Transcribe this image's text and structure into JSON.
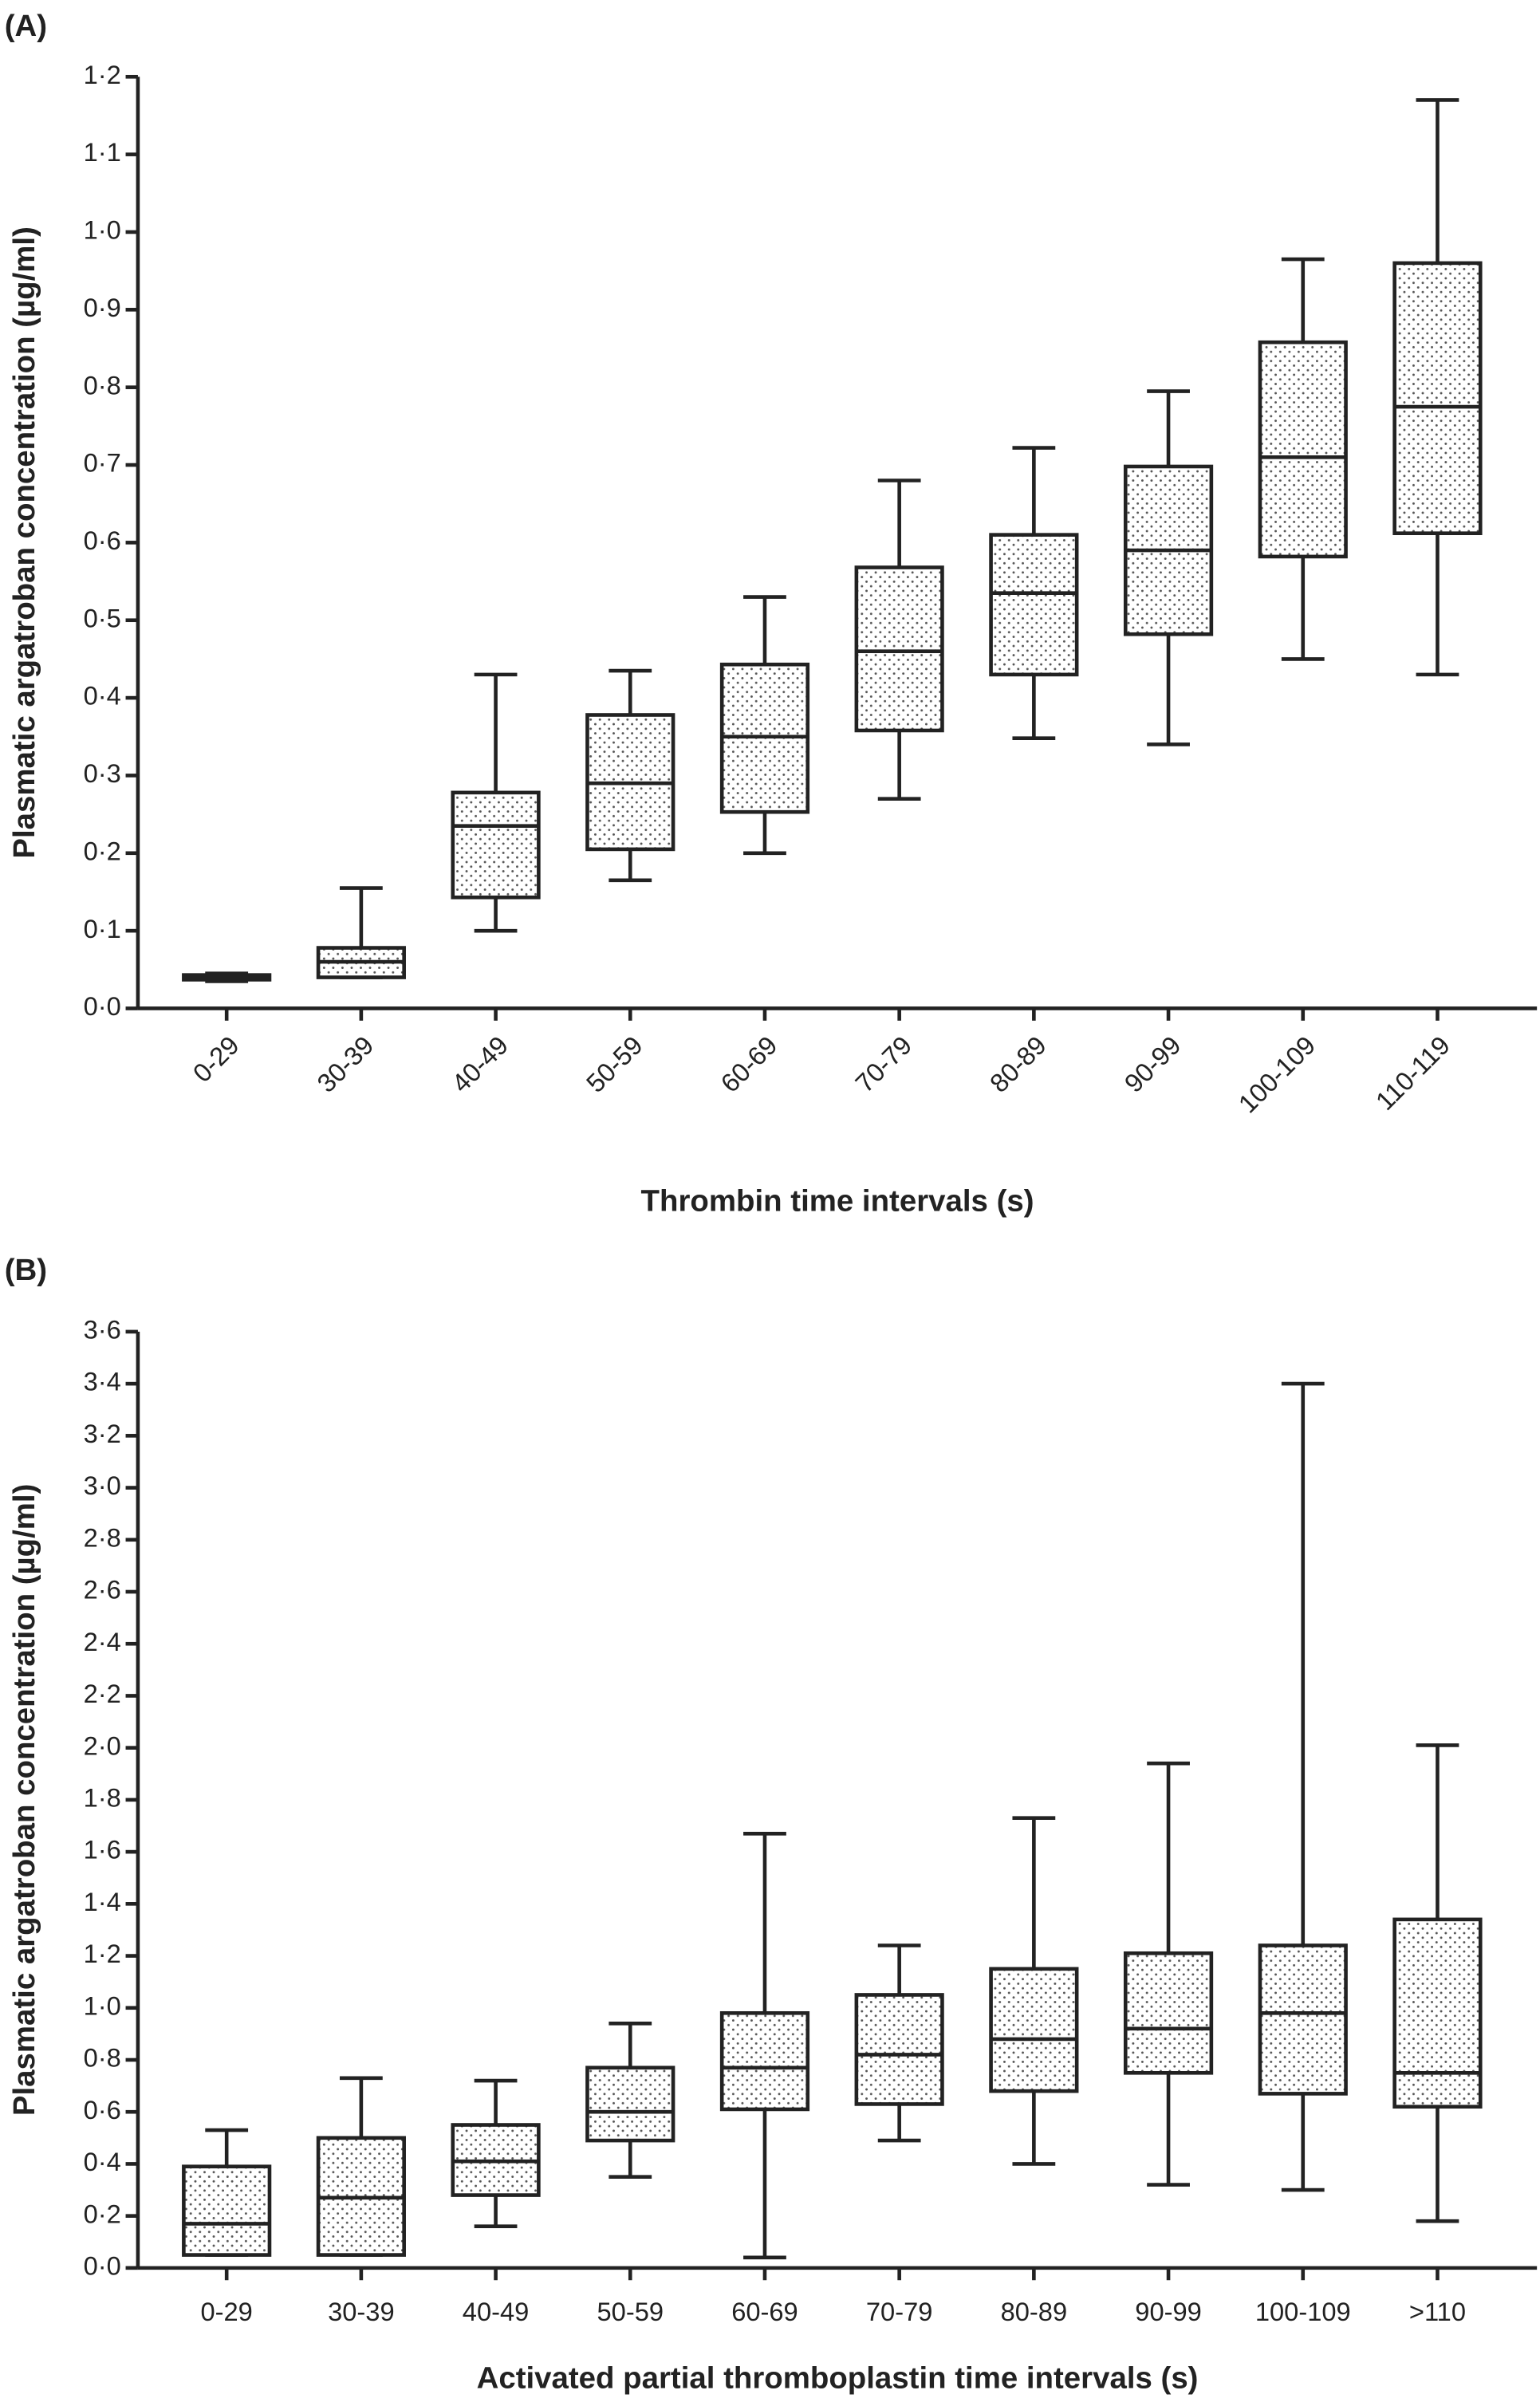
{
  "chart_data": [
    {
      "type": "box",
      "panel": "(A)",
      "x_label": "Thrombin time intervals (s)",
      "y_label": "Plasmatic argatroban concentration (µg/ml)",
      "categories": [
        "0-29",
        "30-39",
        "40-49",
        "50-59",
        "60-69",
        "70-79",
        "80-89",
        "90-99",
        "100-109",
        "110-119"
      ],
      "min": [
        0.035,
        0.04,
        0.1,
        0.165,
        0.2,
        0.27,
        0.348,
        0.34,
        0.45,
        0.43
      ],
      "q1": [
        0.037,
        0.04,
        0.143,
        0.205,
        0.253,
        0.358,
        0.43,
        0.482,
        0.582,
        0.612
      ],
      "median": [
        0.04,
        0.06,
        0.235,
        0.29,
        0.35,
        0.46,
        0.535,
        0.59,
        0.71,
        0.775
      ],
      "q3": [
        0.043,
        0.078,
        0.278,
        0.378,
        0.443,
        0.568,
        0.61,
        0.698,
        0.858,
        0.96
      ],
      "max": [
        0.045,
        0.155,
        0.43,
        0.435,
        0.53,
        0.68,
        0.722,
        0.795,
        0.965,
        1.17
      ],
      "x_label_rotation": -45,
      "ylim": [
        0,
        1.2
      ],
      "yticks": [
        {
          "value": 0,
          "label": "0·0"
        },
        {
          "value": 0.1,
          "label": "0·1"
        },
        {
          "value": 0.2,
          "label": "0·2"
        },
        {
          "value": 0.3,
          "label": "0·3"
        },
        {
          "value": 0.4,
          "label": "0·4"
        },
        {
          "value": 0.5,
          "label": "0·5"
        },
        {
          "value": 0.6,
          "label": "0·6"
        },
        {
          "value": 0.7,
          "label": "0·7"
        },
        {
          "value": 0.8,
          "label": "0·8"
        },
        {
          "value": 0.9,
          "label": "0·9"
        },
        {
          "value": 1.0,
          "label": "1·0"
        },
        {
          "value": 1.1,
          "label": "1·1"
        },
        {
          "value": 1.2,
          "label": "1·2"
        }
      ]
    },
    {
      "type": "box",
      "panel": "(B)",
      "x_label": "Activated partial thromboplastin time intervals (s)",
      "y_label": "Plasmatic argatroban concentration (µg/ml)",
      "categories": [
        "0-29",
        "30-39",
        "40-49",
        "50-59",
        "60-69",
        "70-79",
        "80-89",
        "90-99",
        "100-109",
        ">110"
      ],
      "min": [
        0.05,
        0.05,
        0.16,
        0.35,
        0.04,
        0.49,
        0.4,
        0.32,
        0.3,
        0.18
      ],
      "q1": [
        0.05,
        0.05,
        0.28,
        0.49,
        0.61,
        0.63,
        0.68,
        0.75,
        0.67,
        0.62
      ],
      "median": [
        0.17,
        0.27,
        0.41,
        0.6,
        0.77,
        0.82,
        0.88,
        0.92,
        0.98,
        0.75
      ],
      "q3": [
        0.39,
        0.5,
        0.55,
        0.77,
        0.98,
        1.05,
        1.15,
        1.21,
        1.24,
        1.34
      ],
      "max": [
        0.53,
        0.73,
        0.72,
        0.94,
        1.67,
        1.24,
        1.73,
        1.94,
        3.4,
        2.01
      ],
      "x_label_rotation": 0,
      "ylim": [
        0,
        3.6
      ],
      "yticks": [
        {
          "value": 0,
          "label": "0·0"
        },
        {
          "value": 0.2,
          "label": "0·2"
        },
        {
          "value": 0.4,
          "label": "0·4"
        },
        {
          "value": 0.6,
          "label": "0·6"
        },
        {
          "value": 0.8,
          "label": "0·8"
        },
        {
          "value": 1.0,
          "label": "1·0"
        },
        {
          "value": 1.2,
          "label": "1·2"
        },
        {
          "value": 1.4,
          "label": "1·4"
        },
        {
          "value": 1.6,
          "label": "1·6"
        },
        {
          "value": 1.8,
          "label": "1·8"
        },
        {
          "value": 2.0,
          "label": "2·0"
        },
        {
          "value": 2.2,
          "label": "2·2"
        },
        {
          "value": 2.4,
          "label": "2·4"
        },
        {
          "value": 2.6,
          "label": "2·6"
        },
        {
          "value": 2.8,
          "label": "2·8"
        },
        {
          "value": 3.0,
          "label": "3·0"
        },
        {
          "value": 3.2,
          "label": "3·2"
        },
        {
          "value": 3.4,
          "label": "3·4"
        },
        {
          "value": 3.6,
          "label": "3·6"
        }
      ]
    }
  ]
}
